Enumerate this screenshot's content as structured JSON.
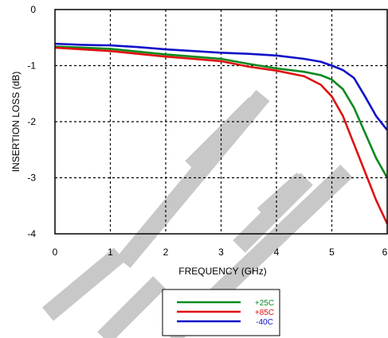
{
  "chart_data": {
    "type": "line",
    "title": "",
    "xlabel": "FREQUENCY (GHz)",
    "ylabel": "INSERTION LOSS (dB)",
    "xlim": [
      0,
      6
    ],
    "ylim": [
      -4,
      0
    ],
    "x_ticks": [
      "0",
      "1",
      "2",
      "3",
      "4",
      "5",
      "6"
    ],
    "y_ticks": [
      "0",
      "-1",
      "-2",
      "-3",
      "-4"
    ],
    "grid": true,
    "grid_style": "dotted",
    "legend_position": "below-plot",
    "watermark": "TE",
    "series": [
      {
        "name": "+25C",
        "color": "#0a8a1e",
        "points": [
          [
            0,
            -0.66
          ],
          [
            0.5,
            -0.68
          ],
          [
            1,
            -0.7
          ],
          [
            1.5,
            -0.75
          ],
          [
            2,
            -0.8
          ],
          [
            2.5,
            -0.84
          ],
          [
            3,
            -0.88
          ],
          [
            3.5,
            -0.97
          ],
          [
            4,
            -1.05
          ],
          [
            4.5,
            -1.11
          ],
          [
            4.8,
            -1.17
          ],
          [
            5.0,
            -1.25
          ],
          [
            5.2,
            -1.42
          ],
          [
            5.4,
            -1.75
          ],
          [
            5.6,
            -2.2
          ],
          [
            5.8,
            -2.65
          ],
          [
            6.0,
            -3.0
          ]
        ]
      },
      {
        "name": "+85C",
        "color": "#e01010",
        "points": [
          [
            0,
            -0.68
          ],
          [
            0.5,
            -0.71
          ],
          [
            1,
            -0.74
          ],
          [
            1.5,
            -0.79
          ],
          [
            2,
            -0.84
          ],
          [
            2.5,
            -0.88
          ],
          [
            3,
            -0.92
          ],
          [
            3.5,
            -1.02
          ],
          [
            4,
            -1.09
          ],
          [
            4.5,
            -1.19
          ],
          [
            4.8,
            -1.34
          ],
          [
            5.0,
            -1.55
          ],
          [
            5.2,
            -1.9
          ],
          [
            5.4,
            -2.4
          ],
          [
            5.6,
            -2.9
          ],
          [
            5.8,
            -3.4
          ],
          [
            6.0,
            -3.82
          ]
        ]
      },
      {
        "name": "-40C",
        "color": "#1010c8",
        "points": [
          [
            0,
            -0.61
          ],
          [
            0.5,
            -0.63
          ],
          [
            1,
            -0.64
          ],
          [
            1.5,
            -0.67
          ],
          [
            2,
            -0.71
          ],
          [
            2.5,
            -0.74
          ],
          [
            3,
            -0.77
          ],
          [
            3.5,
            -0.79
          ],
          [
            4,
            -0.82
          ],
          [
            4.5,
            -0.88
          ],
          [
            4.8,
            -0.93
          ],
          [
            5.0,
            -1.0
          ],
          [
            5.2,
            -1.08
          ],
          [
            5.4,
            -1.22
          ],
          [
            5.6,
            -1.55
          ],
          [
            5.8,
            -1.9
          ],
          [
            6.0,
            -2.15
          ]
        ]
      }
    ]
  }
}
